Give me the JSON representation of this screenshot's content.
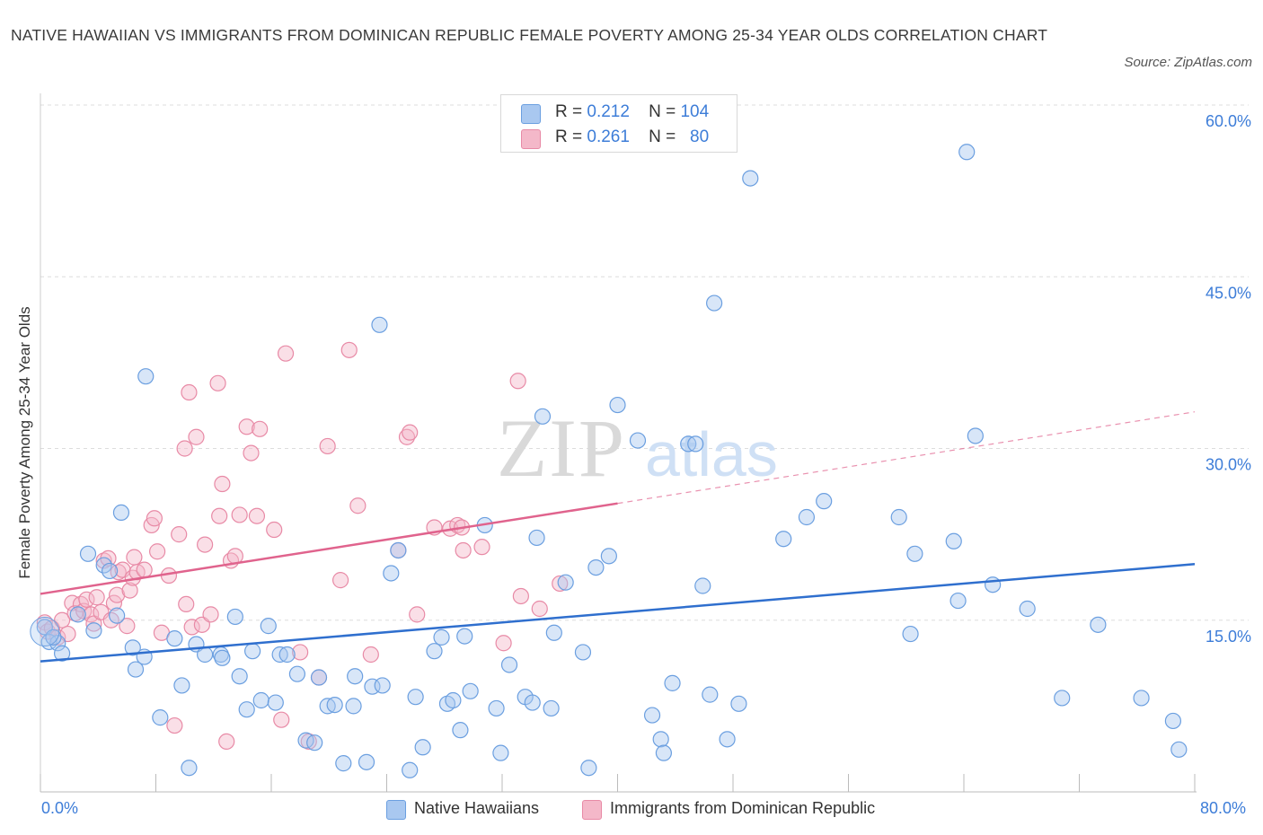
{
  "title": "NATIVE HAWAIIAN VS IMMIGRANTS FROM DOMINICAN REPUBLIC FEMALE POVERTY AMONG 25-34 YEAR OLDS CORRELATION CHART",
  "source": "Source: ZipAtlas.com",
  "watermark": {
    "zip": "ZIP",
    "atlas": "atlas"
  },
  "legend": {
    "rows": [
      {
        "r_label": "R =",
        "r_value": "0.212",
        "n_label": "N =",
        "n_value": "104",
        "color": "#a9c8f0"
      },
      {
        "r_label": "R =",
        "r_value": "0.261",
        "n_label": "N =",
        "n_value": "80",
        "color": "#f4b8c9"
      }
    ]
  },
  "bottom_legend": [
    "Native Hawaiians",
    "Immigrants from Dominican Republic"
  ],
  "colors": {
    "blue_fill": "#a9c8f0",
    "blue_stroke": "#6b9fe0",
    "blue_line": "#2f6fce",
    "pink_fill": "#f4b8c9",
    "pink_stroke": "#e88aa6",
    "pink_line": "#e0638d",
    "tick_text": "#3d7dd8",
    "grid": "#dddddd"
  },
  "chart_data": {
    "type": "scatter",
    "title": "NATIVE HAWAIIAN VS IMMIGRANTS FROM DOMINICAN REPUBLIC FEMALE POVERTY AMONG 25-34 YEAR OLDS CORRELATION CHART",
    "xlabel": "",
    "ylabel": "Female Poverty Among 25-34 Year Olds",
    "xlim": [
      0,
      80
    ],
    "ylim": [
      0,
      60
    ],
    "x_tick_labels": [
      "0.0%",
      "80.0%"
    ],
    "y_ticks": [
      15,
      30,
      45,
      60
    ],
    "y_tick_labels": [
      "15.0%",
      "30.0%",
      "45.0%",
      "60.0%"
    ],
    "grid": "horizontal dashed",
    "legend_position": "top-center",
    "series": [
      {
        "name": "Native Hawaiians",
        "R": 0.212,
        "N": 104,
        "trend": {
          "x": [
            0,
            80
          ],
          "y": [
            11.4,
            19.9
          ],
          "style": "solid"
        },
        "points": [
          [
            0.3,
            14.4
          ],
          [
            0.6,
            13.1
          ],
          [
            1.2,
            13.0
          ],
          [
            1.5,
            12.1
          ],
          [
            2.6,
            15.5
          ],
          [
            3.3,
            20.8
          ],
          [
            3.7,
            14.1
          ],
          [
            4.4,
            19.8
          ],
          [
            4.8,
            19.3
          ],
          [
            5.3,
            15.4
          ],
          [
            5.6,
            24.4
          ],
          [
            6.4,
            12.6
          ],
          [
            6.6,
            10.7
          ],
          [
            7.2,
            11.8
          ],
          [
            7.3,
            36.3
          ],
          [
            8.3,
            6.5
          ],
          [
            9.3,
            13.4
          ],
          [
            9.8,
            9.3
          ],
          [
            10.3,
            2.1
          ],
          [
            10.8,
            12.9
          ],
          [
            11.4,
            12.0
          ],
          [
            12.5,
            12.0
          ],
          [
            12.6,
            11.7
          ],
          [
            13.5,
            15.3
          ],
          [
            13.8,
            10.1
          ],
          [
            14.3,
            7.2
          ],
          [
            14.7,
            12.3
          ],
          [
            15.3,
            8.0
          ],
          [
            15.8,
            14.5
          ],
          [
            16.3,
            7.8
          ],
          [
            16.6,
            12.0
          ],
          [
            17.1,
            12.0
          ],
          [
            17.8,
            10.3
          ],
          [
            18.4,
            4.5
          ],
          [
            19.0,
            4.3
          ],
          [
            19.3,
            10.0
          ],
          [
            19.9,
            7.5
          ],
          [
            20.4,
            7.6
          ],
          [
            21.0,
            2.5
          ],
          [
            21.7,
            7.5
          ],
          [
            21.8,
            10.1
          ],
          [
            22.6,
            2.6
          ],
          [
            23.0,
            9.2
          ],
          [
            23.5,
            40.8
          ],
          [
            23.7,
            9.3
          ],
          [
            24.3,
            19.1
          ],
          [
            24.8,
            21.1
          ],
          [
            25.6,
            1.9
          ],
          [
            26.0,
            8.3
          ],
          [
            26.5,
            3.9
          ],
          [
            27.3,
            12.3
          ],
          [
            27.8,
            13.5
          ],
          [
            28.2,
            7.7
          ],
          [
            28.6,
            8.0
          ],
          [
            29.1,
            5.4
          ],
          [
            29.4,
            13.6
          ],
          [
            29.8,
            8.8
          ],
          [
            30.8,
            23.3
          ],
          [
            31.6,
            7.3
          ],
          [
            31.9,
            3.4
          ],
          [
            32.5,
            11.1
          ],
          [
            33.6,
            8.3
          ],
          [
            34.1,
            7.8
          ],
          [
            34.4,
            22.2
          ],
          [
            34.8,
            32.8
          ],
          [
            35.4,
            7.3
          ],
          [
            35.6,
            13.9
          ],
          [
            36.4,
            18.3
          ],
          [
            37.6,
            12.2
          ],
          [
            38.0,
            2.1
          ],
          [
            38.5,
            19.6
          ],
          [
            39.4,
            20.6
          ],
          [
            40.0,
            33.8
          ],
          [
            41.4,
            30.7
          ],
          [
            42.4,
            6.7
          ],
          [
            43.0,
            4.6
          ],
          [
            43.2,
            3.4
          ],
          [
            43.8,
            9.5
          ],
          [
            44.9,
            30.4
          ],
          [
            45.4,
            30.4
          ],
          [
            45.9,
            18.0
          ],
          [
            46.4,
            8.5
          ],
          [
            46.7,
            42.7
          ],
          [
            47.6,
            4.6
          ],
          [
            48.4,
            7.7
          ],
          [
            49.2,
            53.6
          ],
          [
            51.5,
            22.1
          ],
          [
            53.1,
            24.0
          ],
          [
            54.3,
            25.4
          ],
          [
            59.5,
            24.0
          ],
          [
            60.3,
            13.8
          ],
          [
            60.6,
            20.8
          ],
          [
            63.3,
            21.9
          ],
          [
            63.6,
            16.7
          ],
          [
            64.2,
            55.9
          ],
          [
            64.8,
            31.1
          ],
          [
            66.0,
            18.1
          ],
          [
            68.4,
            16.0
          ],
          [
            70.8,
            8.2
          ],
          [
            73.3,
            14.6
          ],
          [
            76.3,
            8.2
          ],
          [
            78.5,
            6.2
          ],
          [
            78.9,
            3.7
          ],
          [
            0.9,
            13.5
          ]
        ]
      },
      {
        "name": "Immigrants from Dominican Republic",
        "R": 0.261,
        "N": 80,
        "trend": {
          "x": [
            0,
            40
          ],
          "y": [
            17.3,
            25.2
          ],
          "style": "solid",
          "extended": {
            "x": [
              40,
              80
            ],
            "y": [
              25.2,
              33.2
            ],
            "style": "dashed"
          }
        },
        "points": [
          [
            0.3,
            14.8
          ],
          [
            0.5,
            14.0
          ],
          [
            0.8,
            14.3
          ],
          [
            1.2,
            13.5
          ],
          [
            1.5,
            15.0
          ],
          [
            1.9,
            13.8
          ],
          [
            2.2,
            16.5
          ],
          [
            2.4,
            15.6
          ],
          [
            2.8,
            16.4
          ],
          [
            3.0,
            15.8
          ],
          [
            3.2,
            16.8
          ],
          [
            3.5,
            15.5
          ],
          [
            3.7,
            14.7
          ],
          [
            3.9,
            17.0
          ],
          [
            4.2,
            15.7
          ],
          [
            4.4,
            20.2
          ],
          [
            4.7,
            20.4
          ],
          [
            4.9,
            15.0
          ],
          [
            5.1,
            16.5
          ],
          [
            5.3,
            17.2
          ],
          [
            5.4,
            19.2
          ],
          [
            5.7,
            19.4
          ],
          [
            6.0,
            14.5
          ],
          [
            6.2,
            17.6
          ],
          [
            6.4,
            18.7
          ],
          [
            6.5,
            20.5
          ],
          [
            6.7,
            19.2
          ],
          [
            7.2,
            19.4
          ],
          [
            7.7,
            23.3
          ],
          [
            7.9,
            23.9
          ],
          [
            8.1,
            21.0
          ],
          [
            8.4,
            13.9
          ],
          [
            8.9,
            18.9
          ],
          [
            9.3,
            5.8
          ],
          [
            9.6,
            22.5
          ],
          [
            10.0,
            30.0
          ],
          [
            10.1,
            16.4
          ],
          [
            10.3,
            34.9
          ],
          [
            10.5,
            14.4
          ],
          [
            10.8,
            31.0
          ],
          [
            11.2,
            14.6
          ],
          [
            11.4,
            21.6
          ],
          [
            11.8,
            15.5
          ],
          [
            12.3,
            35.7
          ],
          [
            12.4,
            24.1
          ],
          [
            12.6,
            26.9
          ],
          [
            12.9,
            4.4
          ],
          [
            13.2,
            20.2
          ],
          [
            13.5,
            20.6
          ],
          [
            13.8,
            24.2
          ],
          [
            14.3,
            31.9
          ],
          [
            14.6,
            29.6
          ],
          [
            15.0,
            24.1
          ],
          [
            15.2,
            31.7
          ],
          [
            16.2,
            22.9
          ],
          [
            16.7,
            6.3
          ],
          [
            17.0,
            38.3
          ],
          [
            18.0,
            12.2
          ],
          [
            18.6,
            4.4
          ],
          [
            19.3,
            10.0
          ],
          [
            19.9,
            30.2
          ],
          [
            20.8,
            18.5
          ],
          [
            21.4,
            38.6
          ],
          [
            22.0,
            25.0
          ],
          [
            22.9,
            12.0
          ],
          [
            24.8,
            21.1
          ],
          [
            25.4,
            31.0
          ],
          [
            25.6,
            31.4
          ],
          [
            26.1,
            15.5
          ],
          [
            27.3,
            23.1
          ],
          [
            28.4,
            23.0
          ],
          [
            28.9,
            23.3
          ],
          [
            29.2,
            23.1
          ],
          [
            29.3,
            21.1
          ],
          [
            30.6,
            21.4
          ],
          [
            32.1,
            13.0
          ],
          [
            33.1,
            35.9
          ],
          [
            33.3,
            17.1
          ],
          [
            34.6,
            16.0
          ],
          [
            36.0,
            18.2
          ]
        ]
      }
    ]
  }
}
